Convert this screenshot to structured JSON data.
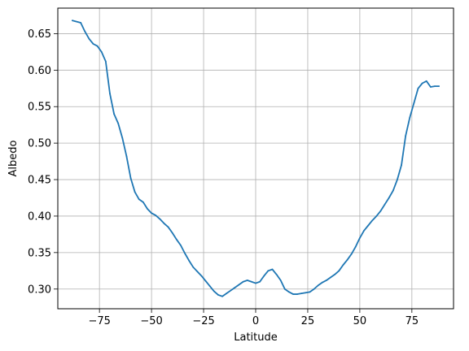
{
  "chart_data": {
    "type": "line",
    "title": "",
    "xlabel": "Latitude",
    "ylabel": "Albedo",
    "xlim": [
      -95,
      95
    ],
    "ylim": [
      0.273,
      0.685
    ],
    "grid": true,
    "colors": {
      "line": "#1f77b4",
      "grid": "#b0b0b0",
      "axes": "#000000"
    },
    "xticks": [
      {
        "value": -75,
        "label": "−75"
      },
      {
        "value": -50,
        "label": "−50"
      },
      {
        "value": -25,
        "label": "−25"
      },
      {
        "value": 0,
        "label": "0"
      },
      {
        "value": 25,
        "label": "25"
      },
      {
        "value": 50,
        "label": "50"
      },
      {
        "value": 75,
        "label": "75"
      }
    ],
    "yticks": [
      {
        "value": 0.3,
        "label": "0.30"
      },
      {
        "value": 0.35,
        "label": "0.35"
      },
      {
        "value": 0.4,
        "label": "0.40"
      },
      {
        "value": 0.45,
        "label": "0.45"
      },
      {
        "value": 0.5,
        "label": "0.50"
      },
      {
        "value": 0.55,
        "label": "0.55"
      },
      {
        "value": 0.6,
        "label": "0.60"
      },
      {
        "value": 0.65,
        "label": "0.65"
      }
    ],
    "series": [
      {
        "x": [
          -88,
          -84,
          -82,
          -80,
          -78,
          -76,
          -74,
          -72,
          -70,
          -68,
          -66,
          -64,
          -62,
          -60,
          -58,
          -56,
          -54,
          -52,
          -50,
          -48,
          -46,
          -44,
          -42,
          -40,
          -38,
          -36,
          -34,
          -32,
          -30,
          -28,
          -26,
          -24,
          -22,
          -20,
          -18,
          -16,
          -14,
          -12,
          -10,
          -8,
          -6,
          -4,
          -2,
          0,
          2,
          4,
          6,
          8,
          10,
          12,
          14,
          16,
          18,
          20,
          22,
          24,
          26,
          28,
          30,
          32,
          34,
          36,
          38,
          40,
          42,
          44,
          46,
          48,
          50,
          52,
          54,
          56,
          58,
          60,
          62,
          64,
          66,
          68,
          70,
          72,
          74,
          76,
          78,
          80,
          82,
          84,
          86,
          88
        ],
        "y": [
          0.668,
          0.665,
          0.653,
          0.643,
          0.636,
          0.633,
          0.625,
          0.612,
          0.568,
          0.54,
          0.527,
          0.507,
          0.482,
          0.452,
          0.433,
          0.423,
          0.419,
          0.41,
          0.404,
          0.401,
          0.396,
          0.39,
          0.385,
          0.377,
          0.368,
          0.36,
          0.349,
          0.339,
          0.33,
          0.324,
          0.318,
          0.311,
          0.304,
          0.297,
          0.292,
          0.29,
          0.294,
          0.298,
          0.302,
          0.306,
          0.31,
          0.312,
          0.31,
          0.308,
          0.31,
          0.318,
          0.325,
          0.327,
          0.32,
          0.312,
          0.3,
          0.296,
          0.293,
          0.293,
          0.294,
          0.295,
          0.296,
          0.3,
          0.305,
          0.309,
          0.312,
          0.316,
          0.32,
          0.325,
          0.333,
          0.34,
          0.348,
          0.358,
          0.37,
          0.38,
          0.387,
          0.394,
          0.4,
          0.407,
          0.416,
          0.425,
          0.435,
          0.45,
          0.47,
          0.51,
          0.535,
          0.555,
          0.575,
          0.582,
          0.585,
          0.577,
          0.578,
          0.578
        ]
      }
    ]
  }
}
